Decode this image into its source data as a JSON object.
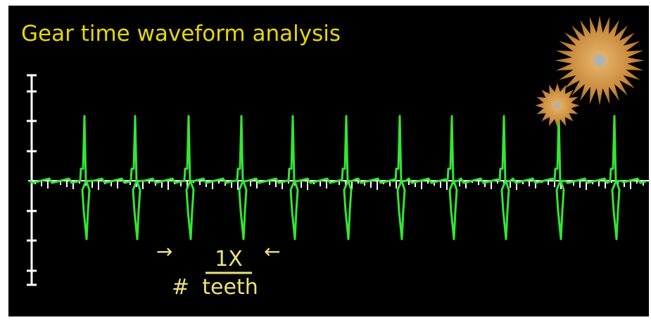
{
  "title": "Gear time waveform analysis",
  "annotation": {
    "left_arrow": "→",
    "numerator": "1X",
    "right_arrow": "←",
    "prefix": "#",
    "denominator": "teeth"
  }
}
